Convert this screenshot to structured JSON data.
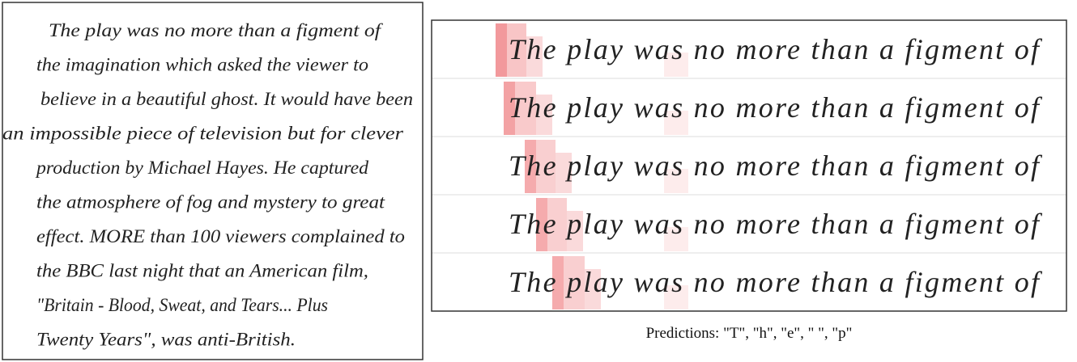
{
  "handwriting": {
    "lines": [
      "The play was no more than a figment of",
      "the imagination which asked the viewer to",
      "believe in a beautiful ghost. It would have been",
      "an impossible piece of television but for clever",
      "production by Michael Hayes. He captured",
      "the atmosphere of fog and mystery to great",
      "effect. MORE than 100 viewers complained to",
      "the BBC last night that an American film,",
      "\"Britain - Blood, Sweat, and Tears... Plus",
      "Twenty Years\", was anti-British."
    ]
  },
  "attention": {
    "rows": [
      "The play was no more than a figment of",
      "The play was no more than a figment of",
      "The play was no more than a figment of",
      "The play was no more than a figment of",
      "The play was no more than a figment of"
    ]
  },
  "caption": "Predictions: \"T\", \"h\", \"e\", \" \", \"p\""
}
